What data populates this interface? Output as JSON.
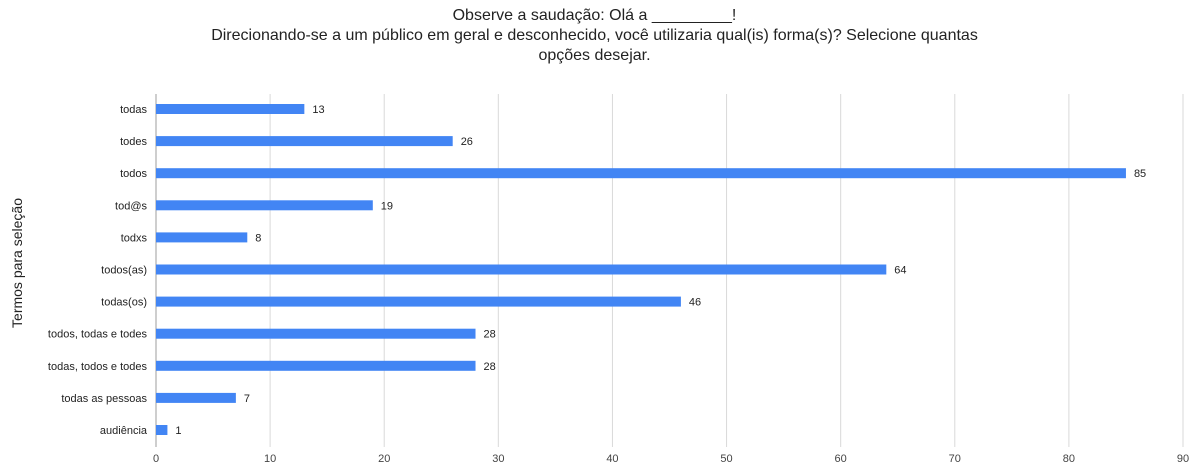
{
  "chart_data": {
    "type": "bar",
    "orientation": "horizontal",
    "title": [
      "Observe a saudação: Olá a _________!",
      "Direcionando-se a um público em geral e desconhecido, você utilizaria qual(is) forma(s)? Selecione quantas",
      "opções desejar."
    ],
    "xlabel": "",
    "ylabel": "Termos para seleção",
    "xlim": [
      0,
      90
    ],
    "xticks": [
      0,
      10,
      20,
      30,
      40,
      50,
      60,
      70,
      80,
      90
    ],
    "grid": true,
    "legend": "none",
    "bar_color": "#4285f4",
    "categories": [
      "todas",
      "todes",
      "todos",
      "tod@s",
      "todxs",
      "todos(as)",
      "todas(os)",
      "todos, todas e todes",
      "todas, todos e todes",
      "todas as pessoas",
      "audiência"
    ],
    "values": [
      13,
      26,
      85,
      19,
      8,
      64,
      46,
      28,
      28,
      7,
      1
    ]
  }
}
